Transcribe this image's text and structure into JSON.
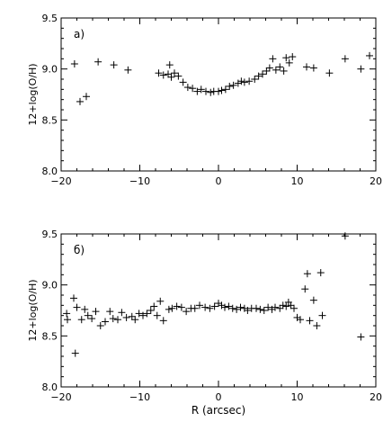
{
  "chart_data": [
    {
      "type": "scatter",
      "panel_label": "a)",
      "ylabel": "12+log(O/H)",
      "xlabel": "",
      "xlim": [
        -20,
        20
      ],
      "ylim": [
        8.0,
        9.5
      ],
      "x_ticks": [
        -20,
        -10,
        0,
        10,
        20
      ],
      "y_ticks": [
        8.0,
        8.5,
        9.0,
        9.5
      ],
      "x_tick_labels": [
        "−20",
        "−10",
        "0",
        "10",
        "20"
      ],
      "y_tick_labels": [
        "8.0",
        "8.5",
        "9.0",
        "9.5"
      ],
      "series": [
        {
          "marker": "plus",
          "color": "#000000",
          "points": [
            [
              -18.3,
              9.05
            ],
            [
              -17.6,
              8.68
            ],
            [
              -16.8,
              8.73
            ],
            [
              -15.3,
              9.07
            ],
            [
              -13.3,
              9.04
            ],
            [
              -11.5,
              8.99
            ],
            [
              -7.6,
              8.96
            ],
            [
              -7.0,
              8.94
            ],
            [
              -6.4,
              8.95
            ],
            [
              -6.2,
              9.04
            ],
            [
              -6.0,
              8.92
            ],
            [
              -5.6,
              8.96
            ],
            [
              -5.1,
              8.93
            ],
            [
              -4.5,
              8.87
            ],
            [
              -3.9,
              8.82
            ],
            [
              -3.3,
              8.81
            ],
            [
              -2.7,
              8.78
            ],
            [
              -2.2,
              8.8
            ],
            [
              -1.6,
              8.78
            ],
            [
              -1.0,
              8.77
            ],
            [
              -0.6,
              8.78
            ],
            [
              0.0,
              8.78
            ],
            [
              0.4,
              8.79
            ],
            [
              0.9,
              8.8
            ],
            [
              1.4,
              8.83
            ],
            [
              1.9,
              8.84
            ],
            [
              2.5,
              8.86
            ],
            [
              2.9,
              8.88
            ],
            [
              3.3,
              8.87
            ],
            [
              3.9,
              8.88
            ],
            [
              4.6,
              8.9
            ],
            [
              5.1,
              8.93
            ],
            [
              5.6,
              8.95
            ],
            [
              6.1,
              8.98
            ],
            [
              6.5,
              9.01
            ],
            [
              6.9,
              9.1
            ],
            [
              7.3,
              8.99
            ],
            [
              7.8,
              9.02
            ],
            [
              8.3,
              8.98
            ],
            [
              8.6,
              9.11
            ],
            [
              9.0,
              9.06
            ],
            [
              9.4,
              9.12
            ],
            [
              11.2,
              9.02
            ],
            [
              12.1,
              9.01
            ],
            [
              14.1,
              8.96
            ],
            [
              16.1,
              9.1
            ],
            [
              18.1,
              9.0
            ],
            [
              19.2,
              9.13
            ]
          ]
        }
      ]
    },
    {
      "type": "scatter",
      "panel_label": "б)",
      "ylabel": "12+log(O/H)",
      "xlabel": "R (arcsec)",
      "xlim": [
        -20,
        20
      ],
      "ylim": [
        8.0,
        9.5
      ],
      "x_ticks": [
        -20,
        -10,
        0,
        10,
        20
      ],
      "y_ticks": [
        8.0,
        8.5,
        9.0,
        9.5
      ],
      "x_tick_labels": [
        "−20",
        "−10",
        "0",
        "10",
        "20"
      ],
      "y_tick_labels": [
        "8.0",
        "8.5",
        "9.0",
        "9.5"
      ],
      "series": [
        {
          "marker": "plus",
          "color": "#000000",
          "points": [
            [
              -19.3,
              8.72
            ],
            [
              -19.2,
              8.66
            ],
            [
              -18.4,
              8.87
            ],
            [
              -18.2,
              8.33
            ],
            [
              -18.0,
              8.78
            ],
            [
              -17.4,
              8.66
            ],
            [
              -17.0,
              8.76
            ],
            [
              -16.6,
              8.7
            ],
            [
              -16.1,
              8.67
            ],
            [
              -15.6,
              8.74
            ],
            [
              -15.0,
              8.6
            ],
            [
              -14.4,
              8.64
            ],
            [
              -13.8,
              8.74
            ],
            [
              -13.4,
              8.67
            ],
            [
              -12.8,
              8.66
            ],
            [
              -12.3,
              8.73
            ],
            [
              -11.7,
              8.68
            ],
            [
              -11.0,
              8.69
            ],
            [
              -10.6,
              8.66
            ],
            [
              -10.1,
              8.72
            ],
            [
              -9.6,
              8.7
            ],
            [
              -9.1,
              8.72
            ],
            [
              -8.6,
              8.75
            ],
            [
              -8.2,
              8.79
            ],
            [
              -7.8,
              8.7
            ],
            [
              -7.4,
              8.84
            ],
            [
              -7.0,
              8.65
            ],
            [
              -6.3,
              8.76
            ],
            [
              -5.9,
              8.77
            ],
            [
              -5.3,
              8.79
            ],
            [
              -4.7,
              8.78
            ],
            [
              -4.1,
              8.74
            ],
            [
              -3.5,
              8.77
            ],
            [
              -3.0,
              8.77
            ],
            [
              -2.4,
              8.8
            ],
            [
              -1.7,
              8.78
            ],
            [
              -1.1,
              8.77
            ],
            [
              -0.5,
              8.79
            ],
            [
              0.0,
              8.82
            ],
            [
              0.4,
              8.8
            ],
            [
              0.8,
              8.78
            ],
            [
              1.3,
              8.79
            ],
            [
              1.8,
              8.77
            ],
            [
              2.3,
              8.76
            ],
            [
              2.8,
              8.78
            ],
            [
              3.3,
              8.77
            ],
            [
              3.7,
              8.75
            ],
            [
              4.2,
              8.77
            ],
            [
              4.8,
              8.77
            ],
            [
              5.3,
              8.76
            ],
            [
              5.8,
              8.75
            ],
            [
              6.3,
              8.78
            ],
            [
              6.8,
              8.76
            ],
            [
              7.2,
              8.78
            ],
            [
              7.8,
              8.77
            ],
            [
              8.2,
              8.8
            ],
            [
              8.6,
              8.79
            ],
            [
              8.9,
              8.83
            ],
            [
              9.2,
              8.8
            ],
            [
              9.6,
              8.77
            ],
            [
              10.0,
              8.68
            ],
            [
              10.4,
              8.66
            ],
            [
              11.0,
              8.96
            ],
            [
              11.3,
              9.11
            ],
            [
              11.6,
              8.65
            ],
            [
              12.1,
              8.85
            ],
            [
              12.5,
              8.6
            ],
            [
              13.0,
              9.12
            ],
            [
              13.2,
              8.7
            ],
            [
              16.1,
              9.48
            ],
            [
              18.1,
              8.49
            ]
          ]
        }
      ]
    }
  ]
}
